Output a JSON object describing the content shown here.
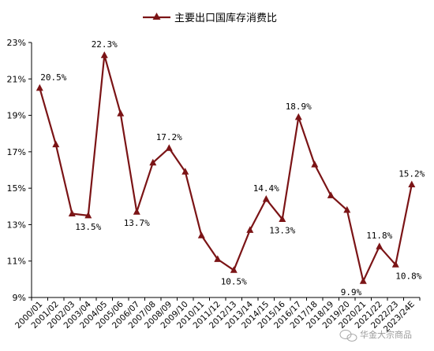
{
  "chart_data": {
    "type": "line",
    "title": "",
    "xlabel": "",
    "ylabel": "",
    "ylim": [
      9,
      23
    ],
    "y_unit": "%",
    "y_ticks": [
      "9%",
      "11%",
      "13%",
      "15%",
      "17%",
      "19%",
      "21%",
      "23%"
    ],
    "grid": false,
    "legend_position": "top-center",
    "categories": [
      "2000/01",
      "2001/02",
      "2002/03",
      "2003/04",
      "2004/05",
      "2005/06",
      "2006/07",
      "2007/08",
      "2008/09",
      "2009/10",
      "2010/11",
      "2011/12",
      "2012/13",
      "2013/14",
      "2014/15",
      "2015/16",
      "2016/17",
      "2017/18",
      "2018/19",
      "2019/20",
      "2020/21",
      "2021/22",
      "2022/23",
      "2023/24E"
    ],
    "series": [
      {
        "name": "主要出口国库存消费比",
        "color": "#7b1416",
        "marker": "triangle",
        "values": [
          20.5,
          17.4,
          13.6,
          13.5,
          22.3,
          19.1,
          13.7,
          16.4,
          17.2,
          15.9,
          12.4,
          11.1,
          10.5,
          12.7,
          14.4,
          13.3,
          18.9,
          16.3,
          14.6,
          13.8,
          9.9,
          11.8,
          10.8,
          15.2
        ]
      }
    ],
    "data_labels": [
      {
        "index": 0,
        "text": "20.5%"
      },
      {
        "index": 3,
        "text": "13.5%"
      },
      {
        "index": 4,
        "text": "22.3%"
      },
      {
        "index": 6,
        "text": "13.7%"
      },
      {
        "index": 8,
        "text": "17.2%"
      },
      {
        "index": 12,
        "text": "10.5%"
      },
      {
        "index": 14,
        "text": "14.4%"
      },
      {
        "index": 15,
        "text": "13.3%"
      },
      {
        "index": 16,
        "text": "18.9%"
      },
      {
        "index": 20,
        "text": "9.9%"
      },
      {
        "index": 21,
        "text": "11.8%"
      },
      {
        "index": 22,
        "text": "10.8%"
      },
      {
        "index": 23,
        "text": "15.2%"
      }
    ]
  },
  "watermark": {
    "text": "华金大宗商品"
  }
}
